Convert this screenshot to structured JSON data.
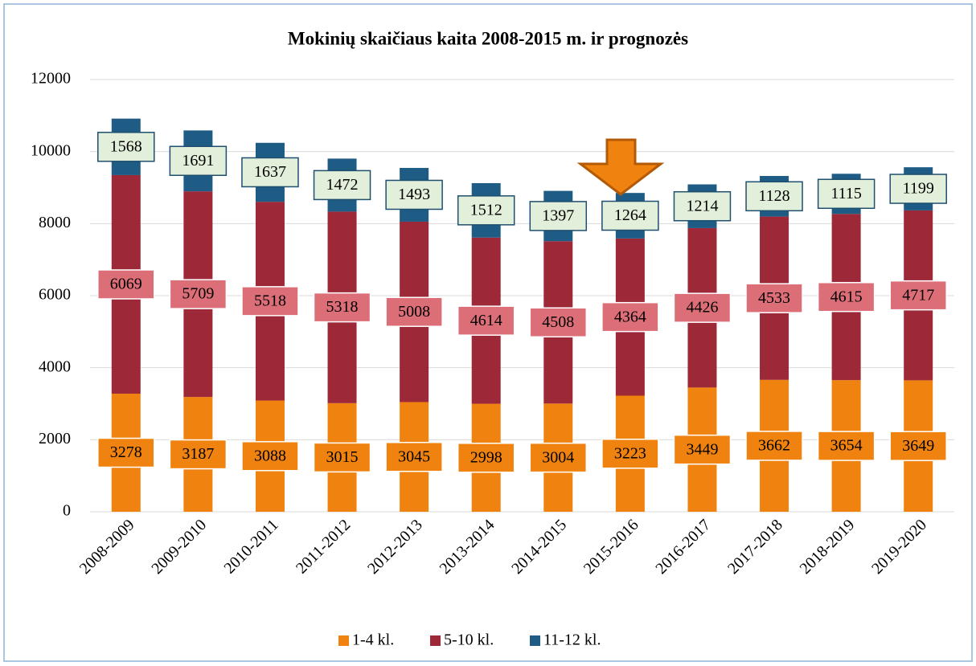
{
  "chart_data": {
    "type": "stacked_bar",
    "title": "Mokinių skaičiaus kaita 2008-2015 m. ir prognozės",
    "categories": [
      "2008-2009",
      "2009-2010",
      "2010-2011",
      "2011-2012",
      "2012-2013",
      "2013-2014",
      "2014-2015",
      "2015-2016",
      "2016-2017",
      "2017-2018",
      "2018-2019",
      "2019-2020"
    ],
    "series": [
      {
        "name": "1-4 kl.",
        "color": "#f0820f",
        "label_fill": "#f0820f",
        "label_stroke": "#ffffff",
        "values": [
          3278,
          3187,
          3088,
          3015,
          3045,
          2998,
          3004,
          3223,
          3449,
          3662,
          3654,
          3649
        ]
      },
      {
        "name": "5-10 kl.",
        "color": "#9c2838",
        "label_fill": "#dc6e78",
        "label_stroke": "#ffffff",
        "values": [
          6069,
          5709,
          5518,
          5318,
          5008,
          4614,
          4508,
          4364,
          4426,
          4533,
          4615,
          4717
        ]
      },
      {
        "name": "11-12 kl.",
        "color": "#1f5c85",
        "label_fill": "#e2efda",
        "label_stroke": "#1f4e6e",
        "values": [
          1568,
          1691,
          1637,
          1472,
          1493,
          1512,
          1397,
          1264,
          1214,
          1128,
          1115,
          1199
        ]
      }
    ],
    "ylim": [
      0,
      12000
    ],
    "yticks": [
      0,
      2000,
      4000,
      6000,
      8000,
      10000,
      12000
    ],
    "grid": true,
    "legend": "bottom"
  }
}
